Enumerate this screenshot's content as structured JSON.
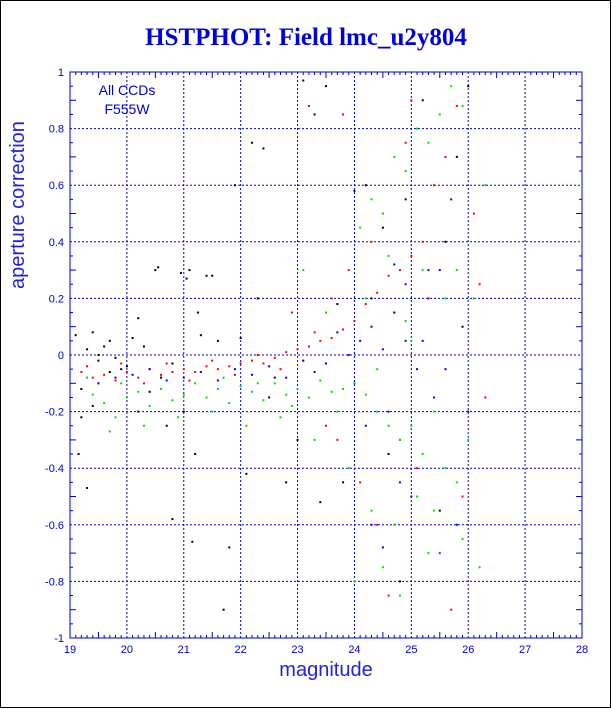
{
  "chart_data": {
    "type": "scatter",
    "title": "HSTPHOT: Field lmc_u2y804",
    "xlabel": "magnitude",
    "ylabel": "aperture correction",
    "xlim": [
      19,
      28
    ],
    "ylim": [
      -1,
      1
    ],
    "xticks": [
      "19",
      "20",
      "21",
      "22",
      "23",
      "24",
      "25",
      "26",
      "27",
      "28"
    ],
    "yticks": [
      "-1",
      "-0.8",
      "-0.6",
      "-0.4",
      "-0.2",
      "0",
      "0.2",
      "0.4",
      "0.6",
      "0.8",
      "1"
    ],
    "annotations": [
      "All CCDs",
      "F555W"
    ],
    "grid": true,
    "series": [
      {
        "color": "#000000",
        "points": [
          [
            19.1,
            0.07
          ],
          [
            19.3,
            0.02
          ],
          [
            19.5,
            -0.02
          ],
          [
            19.2,
            -0.12
          ],
          [
            19.4,
            -0.18
          ],
          [
            19.7,
            0.05
          ],
          [
            19.9,
            -0.05
          ],
          [
            19.15,
            -0.35
          ],
          [
            19.3,
            -0.47
          ],
          [
            19.6,
            0.03
          ],
          [
            19.8,
            -0.01
          ],
          [
            20.1,
            0.06
          ],
          [
            20.3,
            0.03
          ],
          [
            20.6,
            -0.08
          ],
          [
            20.4,
            -0.13
          ],
          [
            20.2,
            0.13
          ],
          [
            20.5,
            0.3
          ],
          [
            20.55,
            0.31
          ],
          [
            21.1,
            0.3
          ],
          [
            20.95,
            0.29
          ],
          [
            21.05,
            0.27
          ],
          [
            21.4,
            0.28
          ],
          [
            21.5,
            0.28
          ],
          [
            21.25,
            0.15
          ],
          [
            21.0,
            -0.2
          ],
          [
            20.2,
            -0.2
          ],
          [
            20.8,
            -0.58
          ],
          [
            21.15,
            -0.66
          ],
          [
            21.9,
            0.6
          ],
          [
            22.2,
            0.75
          ],
          [
            22.4,
            0.73
          ],
          [
            21.8,
            -0.68
          ],
          [
            21.7,
            -0.9
          ],
          [
            22.1,
            -0.42
          ],
          [
            22.5,
            -0.15
          ],
          [
            22.8,
            -0.45
          ],
          [
            23.1,
            0.97
          ],
          [
            23.3,
            0.85
          ],
          [
            23.5,
            0.95
          ],
          [
            24.0,
            0.58
          ],
          [
            24.2,
            0.6
          ],
          [
            23.8,
            -0.45
          ],
          [
            24.6,
            -0.35
          ],
          [
            24.8,
            -0.8
          ],
          [
            25.3,
            0.2
          ],
          [
            25.6,
            0.4
          ],
          [
            26.0,
            0.95
          ],
          [
            25.9,
            0.1
          ],
          [
            25.2,
            0.9
          ],
          [
            19.5,
            0.0
          ],
          [
            19.7,
            -0.06
          ],
          [
            20.0,
            -0.04
          ],
          [
            20.8,
            -0.03
          ],
          [
            21.3,
            0.07
          ],
          [
            21.6,
            0.05
          ],
          [
            22.0,
            0.06
          ],
          [
            22.6,
            -0.08
          ],
          [
            23.0,
            -0.3
          ],
          [
            23.4,
            -0.52
          ],
          [
            24.3,
            0.2
          ],
          [
            24.5,
            0.45
          ],
          [
            25.5,
            -0.55
          ],
          [
            19.2,
            -0.22
          ],
          [
            19.4,
            0.08
          ],
          [
            20.7,
            -0.25
          ],
          [
            21.2,
            -0.35
          ],
          [
            22.3,
            0.2
          ],
          [
            23.7,
            0.18
          ],
          [
            24.9,
            0.55
          ],
          [
            25.8,
            0.7
          ]
        ]
      },
      {
        "color": "#ff0000",
        "points": [
          [
            19.2,
            -0.06
          ],
          [
            19.4,
            -0.08
          ],
          [
            19.6,
            -0.07
          ],
          [
            19.8,
            -0.09
          ],
          [
            20.0,
            -0.06
          ],
          [
            20.2,
            -0.08
          ],
          [
            20.4,
            -0.05
          ],
          [
            20.6,
            -0.07
          ],
          [
            20.8,
            -0.06
          ],
          [
            21.0,
            -0.05
          ],
          [
            21.2,
            -0.06
          ],
          [
            21.4,
            -0.04
          ],
          [
            21.6,
            -0.05
          ],
          [
            21.8,
            -0.04
          ],
          [
            22.0,
            -0.03
          ],
          [
            22.2,
            -0.02
          ],
          [
            22.4,
            -0.03
          ],
          [
            22.6,
            -0.01
          ],
          [
            22.8,
            0.01
          ],
          [
            23.0,
            0.02
          ],
          [
            23.2,
            0.03
          ],
          [
            23.4,
            0.05
          ],
          [
            23.6,
            0.06
          ],
          [
            23.8,
            0.09
          ],
          [
            24.0,
            0.12
          ],
          [
            24.2,
            0.18
          ],
          [
            24.4,
            0.22
          ],
          [
            24.6,
            0.28
          ],
          [
            24.8,
            0.3
          ],
          [
            25.0,
            0.35
          ],
          [
            25.2,
            0.4
          ],
          [
            25.4,
            0.6
          ],
          [
            25.6,
            0.7
          ],
          [
            25.8,
            0.88
          ],
          [
            25.0,
            0.9
          ],
          [
            24.5,
            0.5
          ],
          [
            24.9,
            0.75
          ],
          [
            23.5,
            -0.25
          ],
          [
            23.7,
            -0.3
          ],
          [
            24.1,
            -0.45
          ],
          [
            24.4,
            -0.6
          ],
          [
            24.8,
            -0.3
          ],
          [
            25.1,
            -0.4
          ],
          [
            25.5,
            -0.7
          ],
          [
            25.9,
            -0.5
          ],
          [
            26.1,
            0.5
          ],
          [
            26.3,
            -0.15
          ],
          [
            19.3,
            -0.04
          ],
          [
            19.5,
            -0.1
          ],
          [
            19.9,
            -0.03
          ],
          [
            20.3,
            -0.1
          ],
          [
            20.7,
            -0.03
          ],
          [
            21.1,
            -0.09
          ],
          [
            21.5,
            -0.02
          ],
          [
            21.9,
            -0.07
          ],
          [
            22.3,
            0.0
          ],
          [
            22.7,
            -0.05
          ],
          [
            23.1,
            -0.02
          ],
          [
            23.3,
            0.08
          ],
          [
            23.9,
            0.3
          ],
          [
            24.3,
            0.4
          ],
          [
            24.7,
            0.15
          ],
          [
            25.3,
            0.2
          ],
          [
            23.6,
            0.2
          ],
          [
            22.9,
            0.15
          ],
          [
            23.2,
            0.88
          ],
          [
            23.8,
            0.85
          ],
          [
            24.6,
            -0.85
          ],
          [
            25.7,
            -0.9
          ],
          [
            26.2,
            0.25
          ]
        ]
      },
      {
        "color": "#0000ff",
        "points": [
          [
            19.5,
            -0.1
          ],
          [
            20.1,
            -0.07
          ],
          [
            20.7,
            -0.09
          ],
          [
            21.3,
            -0.06
          ],
          [
            21.9,
            -0.05
          ],
          [
            22.5,
            -0.04
          ],
          [
            23.1,
            -0.02
          ],
          [
            23.5,
            -0.03
          ],
          [
            23.9,
            0.0
          ],
          [
            24.1,
            0.05
          ],
          [
            24.3,
            0.1
          ],
          [
            24.5,
            0.02
          ],
          [
            24.7,
            0.15
          ],
          [
            24.9,
            0.25
          ],
          [
            25.1,
            -0.05
          ],
          [
            25.3,
            0.3
          ],
          [
            25.5,
            0.3
          ],
          [
            24.0,
            -0.1
          ],
          [
            24.2,
            -0.25
          ],
          [
            24.6,
            -0.2
          ],
          [
            24.8,
            -0.45
          ],
          [
            25.0,
            -0.5
          ],
          [
            25.4,
            -0.15
          ],
          [
            25.7,
            0.55
          ],
          [
            25.8,
            -0.6
          ],
          [
            24.5,
            -0.68
          ],
          [
            23.7,
            0.08
          ],
          [
            23.3,
            -0.06
          ],
          [
            22.8,
            -0.08
          ],
          [
            22.2,
            -0.07
          ],
          [
            21.6,
            -0.09
          ],
          [
            21.0,
            -0.08
          ],
          [
            20.4,
            -0.05
          ],
          [
            19.8,
            -0.08
          ],
          [
            24.3,
            -0.6
          ],
          [
            25.2,
            0.05
          ],
          [
            24.7,
            0.32
          ],
          [
            25.6,
            -0.05
          ],
          [
            26.0,
            -0.2
          ],
          [
            24.9,
            0.05
          ]
        ]
      },
      {
        "color": "#00dd00",
        "points": [
          [
            19.4,
            -0.14
          ],
          [
            19.6,
            -0.17
          ],
          [
            19.8,
            -0.22
          ],
          [
            19.7,
            -0.27
          ],
          [
            20.0,
            -0.15
          ],
          [
            20.2,
            -0.13
          ],
          [
            20.4,
            -0.18
          ],
          [
            20.6,
            -0.12
          ],
          [
            20.8,
            -0.16
          ],
          [
            21.0,
            -0.14
          ],
          [
            21.2,
            -0.1
          ],
          [
            21.4,
            -0.15
          ],
          [
            21.6,
            -0.12
          ],
          [
            21.8,
            -0.17
          ],
          [
            22.0,
            -0.11
          ],
          [
            22.2,
            -0.13
          ],
          [
            22.4,
            -0.16
          ],
          [
            22.6,
            -0.1
          ],
          [
            22.8,
            -0.14
          ],
          [
            23.0,
            -0.12
          ],
          [
            23.2,
            -0.15
          ],
          [
            23.4,
            -0.09
          ],
          [
            23.6,
            -0.13
          ],
          [
            23.8,
            -0.12
          ],
          [
            24.0,
            -0.1
          ],
          [
            24.2,
            -0.14
          ],
          [
            24.4,
            -0.2
          ],
          [
            24.6,
            -0.25
          ],
          [
            24.8,
            -0.3
          ],
          [
            25.0,
            -0.25
          ],
          [
            25.2,
            -0.35
          ],
          [
            25.4,
            -0.2
          ],
          [
            25.6,
            -0.4
          ],
          [
            25.8,
            -0.45
          ],
          [
            24.1,
            0.45
          ],
          [
            24.3,
            0.55
          ],
          [
            24.5,
            0.5
          ],
          [
            24.7,
            0.7
          ],
          [
            24.9,
            0.65
          ],
          [
            25.1,
            0.8
          ],
          [
            25.3,
            0.75
          ],
          [
            25.5,
            0.85
          ],
          [
            25.7,
            0.95
          ],
          [
            25.9,
            0.88
          ],
          [
            24.2,
            0.2
          ],
          [
            24.6,
            0.35
          ],
          [
            24.9,
            0.12
          ],
          [
            25.2,
            0.3
          ],
          [
            25.6,
            0.2
          ],
          [
            23.9,
            -0.4
          ],
          [
            24.3,
            -0.55
          ],
          [
            24.7,
            -0.6
          ],
          [
            25.1,
            -0.5
          ],
          [
            25.4,
            -0.55
          ],
          [
            25.9,
            -0.65
          ],
          [
            26.0,
            -0.3
          ],
          [
            24.0,
            -0.8
          ],
          [
            24.5,
            -0.75
          ],
          [
            24.8,
            -0.85
          ],
          [
            25.3,
            -0.7
          ],
          [
            26.2,
            -0.75
          ],
          [
            23.1,
            0.3
          ],
          [
            23.5,
            0.15
          ],
          [
            23.3,
            -0.3
          ],
          [
            22.7,
            -0.22
          ],
          [
            22.1,
            -0.25
          ],
          [
            21.5,
            -0.2
          ],
          [
            20.9,
            -0.22
          ],
          [
            20.3,
            -0.25
          ],
          [
            19.9,
            -0.1
          ],
          [
            19.3,
            -0.08
          ],
          [
            26.1,
            0.2
          ],
          [
            26.3,
            0.6
          ],
          [
            25.8,
            0.3
          ],
          [
            25.0,
            0.05
          ],
          [
            24.4,
            -0.05
          ],
          [
            23.7,
            -0.2
          ],
          [
            22.9,
            -0.18
          ],
          [
            22.3,
            -0.1
          ],
          [
            21.7,
            -0.08
          ]
        ]
      }
    ]
  }
}
